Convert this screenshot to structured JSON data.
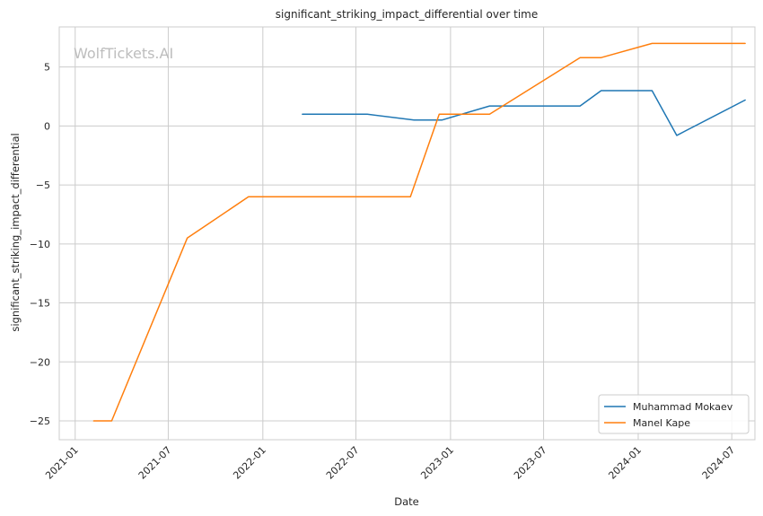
{
  "chart_data": {
    "type": "line",
    "title": "significant_striking_impact_differential over time",
    "xlabel": "Date",
    "ylabel": "significant_striking_impact_differential",
    "watermark": "WolfTickets.AI",
    "xlim": [
      "2020-12-01",
      "2024-08-15"
    ],
    "ylim": [
      -26.6,
      8.4
    ],
    "x_ticks": [
      "2021-01-01",
      "2021-07-01",
      "2022-01-01",
      "2022-07-01",
      "2023-01-01",
      "2023-07-01",
      "2024-01-01",
      "2024-07-01"
    ],
    "x_tick_labels": [
      "2021-01",
      "2021-07",
      "2022-01",
      "2022-07",
      "2023-01",
      "2023-07",
      "2024-01",
      "2024-07"
    ],
    "y_ticks": [
      -25,
      -20,
      -15,
      -10,
      -5,
      0,
      5
    ],
    "y_tick_labels": [
      "−25",
      "−20",
      "−15",
      "−10",
      "−5",
      "0",
      "5"
    ],
    "grid": true,
    "legend_position": "bottom-right",
    "series": [
      {
        "name": "Muhammad Mokaev",
        "color": "#1f77b4",
        "points": [
          {
            "x": "2022-03-19",
            "y": 1.0
          },
          {
            "x": "2022-07-23",
            "y": 1.0
          },
          {
            "x": "2022-10-22",
            "y": 0.5
          },
          {
            "x": "2022-12-15",
            "y": 0.5
          },
          {
            "x": "2023-03-18",
            "y": 1.7
          },
          {
            "x": "2023-09-10",
            "y": 1.7
          },
          {
            "x": "2023-10-21",
            "y": 3.0
          },
          {
            "x": "2024-01-28",
            "y": 3.0
          },
          {
            "x": "2024-03-16",
            "y": -0.8
          },
          {
            "x": "2024-07-27",
            "y": 2.2
          }
        ]
      },
      {
        "name": "Manel Kape",
        "color": "#ff7f0e",
        "points": [
          {
            "x": "2021-02-06",
            "y": -25.0
          },
          {
            "x": "2021-03-13",
            "y": -25.0
          },
          {
            "x": "2021-08-07",
            "y": -9.5
          },
          {
            "x": "2021-12-04",
            "y": -6.0
          },
          {
            "x": "2022-10-15",
            "y": -6.0
          },
          {
            "x": "2022-12-10",
            "y": 1.0
          },
          {
            "x": "2023-03-18",
            "y": 1.0
          },
          {
            "x": "2023-09-10",
            "y": 5.8
          },
          {
            "x": "2023-10-21",
            "y": 5.8
          },
          {
            "x": "2024-01-28",
            "y": 7.0
          },
          {
            "x": "2024-07-27",
            "y": 7.0
          }
        ]
      }
    ]
  }
}
